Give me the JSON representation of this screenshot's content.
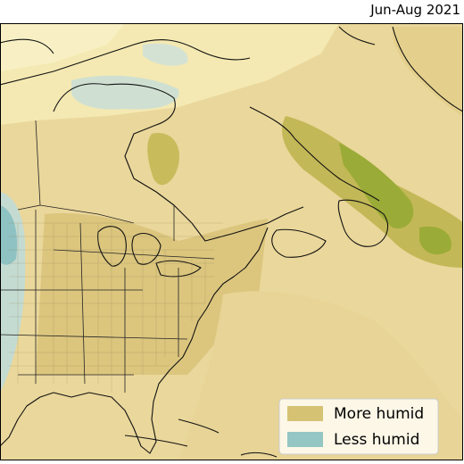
{
  "header": {
    "title": "Jun-Aug 2021"
  },
  "legend": {
    "items": [
      {
        "label": "More humid",
        "color": "#d6c273"
      },
      {
        "label": "Less humid",
        "color": "#94c6c4"
      }
    ]
  }
}
